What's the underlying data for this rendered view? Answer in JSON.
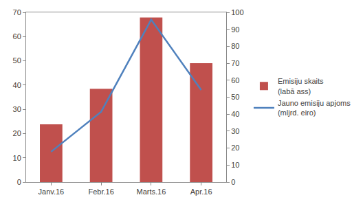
{
  "chart_data": {
    "type": "bar",
    "categories": [
      "Janv.16",
      "Febr.16",
      "Marts.16",
      "Apr.16"
    ],
    "series": [
      {
        "name": "Emisiju skaits (labā ass)",
        "type": "bar",
        "color": "#c0504d",
        "axis": "y2",
        "values": [
          34,
          55,
          97,
          70
        ]
      },
      {
        "name": "Jauno emisiju apjoms (mljrd. eiro)",
        "type": "line",
        "color": "#4f81bd",
        "axis": "y",
        "values": [
          12.5,
          29,
          67,
          38
        ]
      }
    ],
    "ylim": [
      0,
      70
    ],
    "yticks": [
      0,
      10,
      20,
      30,
      40,
      50,
      60,
      70
    ],
    "y2lim": [
      0,
      100
    ],
    "y2ticks": [
      0,
      10,
      20,
      30,
      40,
      50,
      60,
      70,
      80,
      90,
      100
    ],
    "grid": false,
    "legend": "right"
  }
}
